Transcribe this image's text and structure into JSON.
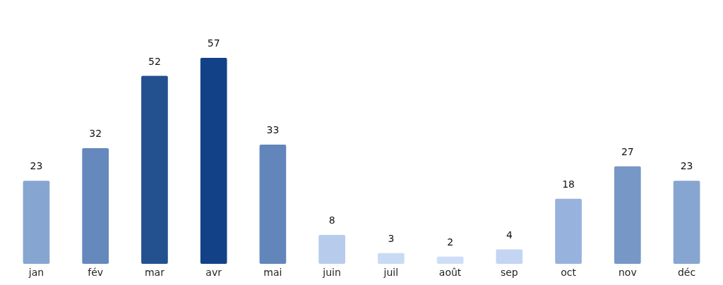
{
  "chart_data": {
    "type": "bar",
    "categories": [
      "jan",
      "fév",
      "mar",
      "avr",
      "mai",
      "juin",
      "juil",
      "août",
      "sep",
      "oct",
      "nov",
      "déc"
    ],
    "values": [
      23,
      32,
      52,
      57,
      33,
      8,
      3,
      2,
      4,
      18,
      27,
      23
    ],
    "colors": [
      "#86a5d1",
      "#6589bd",
      "#23508f",
      "#134187",
      "#6286bb",
      "#b7cbec",
      "#c9daf5",
      "#cfdef7",
      "#c3d5f3",
      "#97b2dc",
      "#7797c6",
      "#86a5d1"
    ],
    "data_labels": true
  }
}
